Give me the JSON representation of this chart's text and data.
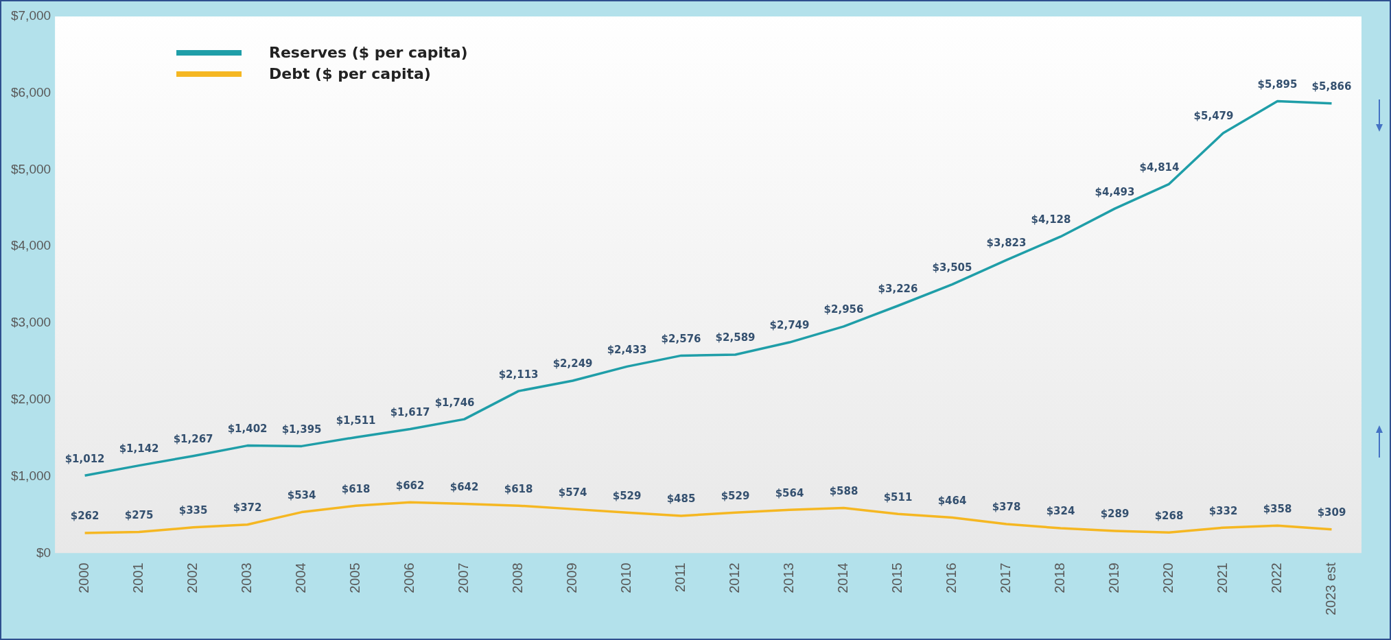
{
  "chart_data": {
    "type": "line",
    "categories": [
      "2000",
      "2001",
      "2002",
      "2003",
      "2004",
      "2005",
      "2006",
      "2007",
      "2008",
      "2009",
      "2010",
      "2011",
      "2012",
      "2013",
      "2014",
      "2015",
      "2016",
      "2017",
      "2018",
      "2019",
      "2020",
      "2021",
      "2022",
      "2023 est"
    ],
    "series": [
      {
        "name": "Reserves ($ per capita)",
        "color": "#1f9ea8",
        "values": [
          1012,
          1142,
          1267,
          1402,
          1395,
          1511,
          1617,
          1746,
          2113,
          2249,
          2433,
          2576,
          2589,
          2749,
          2956,
          3226,
          3505,
          3823,
          4128,
          4493,
          4814,
          5479,
          5895,
          5866
        ],
        "value_labels": [
          "$1,012",
          "$1,142",
          "$1,267",
          "$1,402",
          "$1,395",
          "$1,511",
          "$1,617",
          "$1,746",
          "$2,113",
          "$2,249",
          "$2,433",
          "$2,576",
          "$2,589",
          "$2,749",
          "$2,956",
          "$3,226",
          "$3,505",
          "$3,823",
          "$4,128",
          "$4,493",
          "$4,814",
          "$5,479",
          "$5,895",
          "$5,866"
        ]
      },
      {
        "name": "Debt ($ per capita)",
        "color": "#f5b722",
        "values": [
          262,
          275,
          335,
          372,
          534,
          618,
          662,
          642,
          618,
          574,
          529,
          485,
          529,
          564,
          588,
          511,
          464,
          378,
          324,
          289,
          268,
          332,
          358,
          309
        ],
        "value_labels": [
          "$262",
          "$275",
          "$335",
          "$372",
          "$534",
          "$618",
          "$662",
          "$642",
          "$618",
          "$574",
          "$529",
          "$485",
          "$529",
          "$564",
          "$588",
          "$511",
          "$464",
          "$378",
          "$324",
          "$289",
          "$268",
          "$332",
          "$358",
          "$309"
        ]
      }
    ],
    "ylim": [
      0,
      7000
    ],
    "yticks": [
      {
        "value": 0,
        "label": "$0"
      },
      {
        "value": 1000,
        "label": "$1,000"
      },
      {
        "value": 2000,
        "label": "$2,000"
      },
      {
        "value": 3000,
        "label": "$3,000"
      },
      {
        "value": 4000,
        "label": "$4,000"
      },
      {
        "value": 5000,
        "label": "$5,000"
      },
      {
        "value": 6000,
        "label": "$6,000"
      },
      {
        "value": 7000,
        "label": "$7,000"
      }
    ],
    "legend": "top left",
    "marker": "none",
    "line_style": "solid"
  }
}
